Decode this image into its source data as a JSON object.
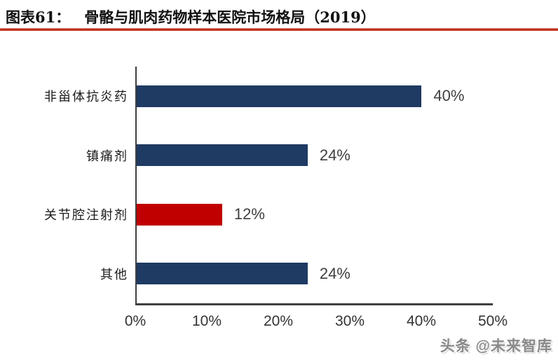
{
  "header": {
    "label": "图表61：",
    "title": "骨骼与肌肉药物样本医院市场格局（2019）"
  },
  "chart_data": {
    "type": "bar",
    "orientation": "horizontal",
    "title": "骨骼与肌肉药物样本医院市场格局（2019）",
    "categories": [
      "非甾体抗炎药",
      "镇痛剂",
      "关节腔注射剂",
      "其他"
    ],
    "values": [
      40,
      24,
      12,
      24
    ],
    "value_labels": [
      "40%",
      "24%",
      "12%",
      "24%"
    ],
    "bar_colors": [
      "#1f3a63",
      "#1f3a63",
      "#c00000",
      "#1f3a63"
    ],
    "x_ticks": [
      "0%",
      "10%",
      "20%",
      "30%",
      "40%",
      "50%"
    ],
    "x_tick_values": [
      0,
      10,
      20,
      30,
      40,
      50
    ],
    "xlim": [
      0,
      50
    ],
    "xlabel": "",
    "ylabel": "",
    "legend": "none",
    "grid": "off"
  },
  "watermark": {
    "text": "头条 @未来智库"
  },
  "colors": {
    "bar_navy": "#1f3a63",
    "bar_red": "#c00000",
    "rule_red": "#bf3420",
    "axis_gray": "#3f3f3f",
    "label_gray": "#404040"
  }
}
